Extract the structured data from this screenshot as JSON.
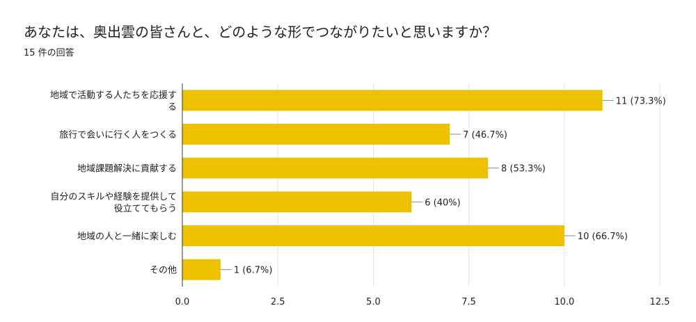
{
  "header": {
    "question": "あなたは、奥出雲の皆さんと、どのような形でつながりたいと思いますか？",
    "responses": "15 件の回答"
  },
  "colors": {
    "bar": "#eec100",
    "grid": "#e3e3e3",
    "axis": "#333333",
    "text": "#202124"
  },
  "chart_data": {
    "type": "bar",
    "orientation": "horizontal",
    "categories": [
      [
        "地域で活動する人たちを応援す",
        "る"
      ],
      [
        "旅行で会いに行く人をつくる"
      ],
      [
        "地域課題解決に貢献する"
      ],
      [
        "自分のスキルや経験を提供して",
        "役立ててもらう"
      ],
      [
        "地域の人と一緒に楽しむ"
      ],
      [
        "その他"
      ]
    ],
    "values": [
      11,
      7,
      8,
      6,
      10,
      1
    ],
    "value_labels": [
      "11 (73.3%)",
      "7 (46.7%)",
      "8 (53.3%)",
      "6 (40%)",
      "10 (66.7%)",
      "1 (6.7%)"
    ],
    "xlim": [
      0,
      12.5
    ],
    "xticks": [
      0,
      2.5,
      5,
      7.5,
      10,
      12.5
    ],
    "xtick_labels": [
      "0.0",
      "2.5",
      "5.0",
      "7.5",
      "10.0",
      "12.5"
    ],
    "grid": true,
    "legend": "none"
  }
}
